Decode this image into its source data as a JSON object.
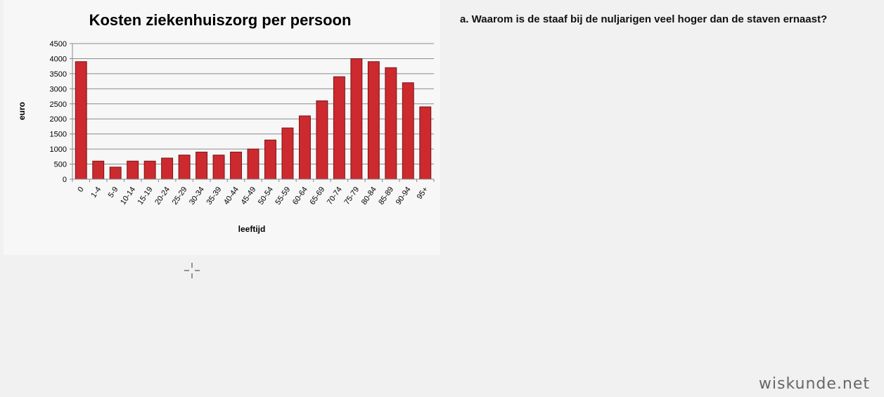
{
  "chart_data": {
    "type": "bar",
    "title": "Kosten ziekenhuiszorg per persoon",
    "xlabel": "leeftijd",
    "ylabel": "euro",
    "ylim": [
      0,
      4500
    ],
    "yticks": [
      0,
      500,
      1000,
      1500,
      2000,
      2500,
      3000,
      3500,
      4000,
      4500
    ],
    "grid": true,
    "categories": [
      "0",
      "1-4",
      "5-9",
      "10-14",
      "15-19",
      "20-24",
      "25-29",
      "30-34",
      "35-39",
      "40-44",
      "45-49",
      "50-54",
      "55-59",
      "60-64",
      "65-69",
      "70-74",
      "75-79",
      "80-84",
      "85-89",
      "90-94",
      "95+"
    ],
    "values": [
      3900,
      600,
      400,
      600,
      600,
      700,
      800,
      900,
      800,
      900,
      1000,
      1300,
      1700,
      2100,
      2600,
      3400,
      4000,
      3900,
      3700,
      3200,
      2400
    ],
    "bar_color": "#cc2a2f",
    "bar_edge_color": "#7a1215"
  },
  "question": {
    "text": "a. Waarom is de staaf bij de nuljarigen veel hoger dan de staven ernaast?"
  },
  "watermark": {
    "text": "wiskunde.net"
  }
}
